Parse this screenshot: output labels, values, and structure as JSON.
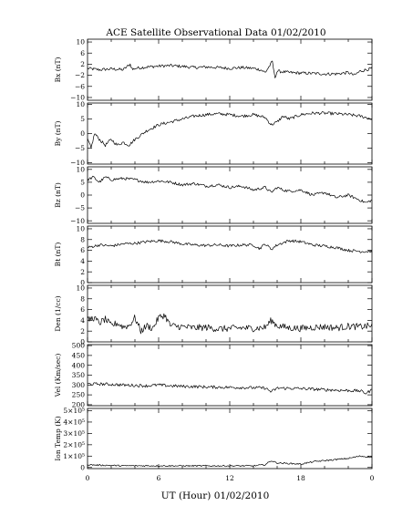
{
  "chart_data": {
    "type": "line",
    "title": "ACE Satellite Observational Data   01/02/2010",
    "xlabel": "UT (Hour)   01/02/2010",
    "x_ticks": [
      "0",
      "6",
      "12",
      "18",
      "0"
    ],
    "x_range_hours": [
      0,
      24
    ],
    "panels": [
      {
        "ylabel": "Bx (nT)",
        "ylim": [
          -11,
          11
        ],
        "ticks": [
          -10,
          -6,
          -2,
          2,
          6,
          10
        ],
        "tick_labels": [
          "−10",
          "−6",
          "−2",
          "2",
          "6",
          "10"
        ],
        "x": [
          0,
          1,
          2,
          3,
          3.6,
          3.8,
          4,
          5,
          6,
          7,
          8,
          9,
          10,
          11,
          12,
          13,
          14,
          14.6,
          15,
          15.6,
          15.8,
          16,
          17,
          18,
          19,
          20,
          21,
          22,
          22.5,
          23,
          24
        ],
        "y": [
          0.5,
          0,
          0.3,
          0,
          2,
          0,
          0.5,
          1,
          1.3,
          1.5,
          1.2,
          0.8,
          1,
          0.8,
          0.5,
          0.8,
          0.5,
          0,
          -1,
          3,
          -3,
          -0.5,
          -1,
          -1.2,
          -1.3,
          -1.5,
          -1.5,
          -1,
          -2,
          -0.5,
          0.5
        ]
      },
      {
        "ylabel": "By (nT)",
        "ylim": [
          -10.5,
          10.5
        ],
        "ticks": [
          -10,
          -5,
          0,
          5,
          10
        ],
        "tick_labels": [
          "−10",
          "−5",
          "0",
          "5",
          "10"
        ],
        "x": [
          0,
          0.3,
          0.6,
          1,
          1.5,
          2,
          2.5,
          3,
          3.5,
          4,
          5,
          6,
          7,
          8,
          9,
          10,
          11,
          12,
          13,
          14,
          15,
          15.5,
          16,
          16.5,
          17,
          18,
          19,
          20,
          21,
          22,
          23,
          24
        ],
        "y": [
          -2,
          -5,
          0,
          -2,
          -4,
          -2,
          -4,
          -3,
          -4,
          -2,
          1,
          3,
          4,
          5,
          6,
          6.5,
          6.8,
          6.5,
          6,
          6.5,
          5.5,
          3,
          4,
          6,
          5,
          6.5,
          7,
          7,
          6.8,
          6.5,
          6,
          5
        ]
      },
      {
        "ylabel": "Bz (nT)",
        "ylim": [
          -11,
          11
        ],
        "ticks": [
          -10,
          -5,
          0,
          5,
          10
        ],
        "tick_labels": [
          "−10",
          "−5",
          "0",
          "5",
          "10"
        ],
        "x": [
          0,
          0.5,
          1,
          1.5,
          2,
          3,
          4,
          5,
          6,
          7,
          8,
          9,
          10,
          11,
          12,
          13,
          14,
          15,
          15.5,
          16,
          16.5,
          17,
          18,
          19,
          20,
          21,
          22,
          23,
          23.5,
          24
        ],
        "y": [
          6,
          7,
          5,
          7,
          6,
          6.5,
          6,
          5,
          5.5,
          5,
          4,
          4.5,
          3.5,
          4,
          3,
          3.5,
          2,
          3,
          1,
          3,
          2,
          1.5,
          2,
          0,
          1,
          -1,
          0,
          -2,
          -3,
          -2
        ]
      },
      {
        "ylabel": "Bt (nT)",
        "ylim": [
          0,
          10.5
        ],
        "ticks": [
          0,
          2,
          4,
          6,
          8,
          10
        ],
        "tick_labels": [
          "0",
          "2",
          "4",
          "6",
          "8",
          "10"
        ],
        "x": [
          0,
          1,
          2,
          3,
          4,
          5,
          6,
          7,
          8,
          9,
          10,
          11,
          12,
          13,
          14,
          14.5,
          15,
          15.5,
          16,
          17,
          18,
          19,
          20,
          21,
          22,
          23,
          24
        ],
        "y": [
          6.5,
          7,
          6.8,
          7.2,
          7.3,
          7.6,
          7.8,
          7.6,
          7.2,
          7,
          6.9,
          7,
          6.8,
          7,
          7,
          6.3,
          7.2,
          6.2,
          7,
          7.8,
          7.6,
          7,
          6.8,
          6.5,
          6,
          5.8,
          5.8
        ]
      },
      {
        "ylabel": "Den (1/cc)",
        "ylim": [
          0,
          10.5
        ],
        "ticks": [
          0,
          2,
          4,
          6,
          8,
          10
        ],
        "tick_labels": [
          "0",
          "2",
          "4",
          "6",
          "8",
          "10"
        ],
        "x": [
          0,
          0.5,
          1,
          1.5,
          2,
          2.5,
          3,
          3.5,
          4,
          4.5,
          5,
          5.5,
          6,
          6.5,
          7,
          8,
          9,
          10,
          11,
          12,
          13,
          14,
          15,
          15.5,
          16,
          17,
          18,
          19,
          20,
          21,
          22,
          23,
          24
        ],
        "y": [
          4,
          4.5,
          3.5,
          4.2,
          3,
          3.5,
          2.8,
          3,
          4.5,
          2,
          3,
          2.5,
          4.5,
          5,
          3,
          2.8,
          2.6,
          2.7,
          2.4,
          2.5,
          2.6,
          2.5,
          2.7,
          4,
          3,
          2.6,
          2.5,
          2.7,
          2.8,
          2.6,
          2.9,
          2.8,
          3
        ]
      },
      {
        "ylabel": "Vel (Km/sec)",
        "ylim": [
          195,
          505
        ],
        "ticks": [
          200,
          250,
          300,
          350,
          400,
          450,
          500
        ],
        "tick_labels": [
          "200",
          "250",
          "300",
          "350",
          "400",
          "450",
          "500"
        ],
        "x": [
          0,
          1,
          2,
          3,
          4,
          5,
          6,
          7,
          8,
          9,
          10,
          11,
          12,
          13,
          14,
          15,
          15.5,
          16,
          17,
          18,
          19,
          20,
          21,
          22,
          23,
          23.5,
          24
        ],
        "y": [
          305,
          305,
          303,
          300,
          298,
          296,
          300,
          296,
          293,
          292,
          290,
          289,
          288,
          287,
          286,
          285,
          265,
          284,
          283,
          282,
          279,
          276,
          274,
          272,
          270,
          258,
          275
        ]
      },
      {
        "ylabel": "Ion Temp (K)",
        "ylim": [
          -10000,
          520000
        ],
        "ticks": [
          0,
          100000,
          200000,
          300000,
          400000,
          500000
        ],
        "tick_labels": [
          "0",
          "1×10⁵",
          "2×10⁵",
          "3×10⁵",
          "4×10⁵",
          "5×10⁵"
        ],
        "x": [
          0,
          1,
          2,
          3,
          4,
          5,
          6,
          7,
          8,
          9,
          10,
          11,
          12,
          13,
          14,
          15,
          15.5,
          16,
          17,
          18,
          19,
          20,
          21,
          22,
          23,
          24
        ],
        "y": [
          25000,
          20000,
          18000,
          15000,
          15000,
          15000,
          15000,
          14000,
          14000,
          14000,
          14000,
          14000,
          14000,
          14000,
          14000,
          25000,
          60000,
          40000,
          35000,
          30000,
          50000,
          60000,
          70000,
          80000,
          100000,
          90000
        ]
      }
    ]
  }
}
